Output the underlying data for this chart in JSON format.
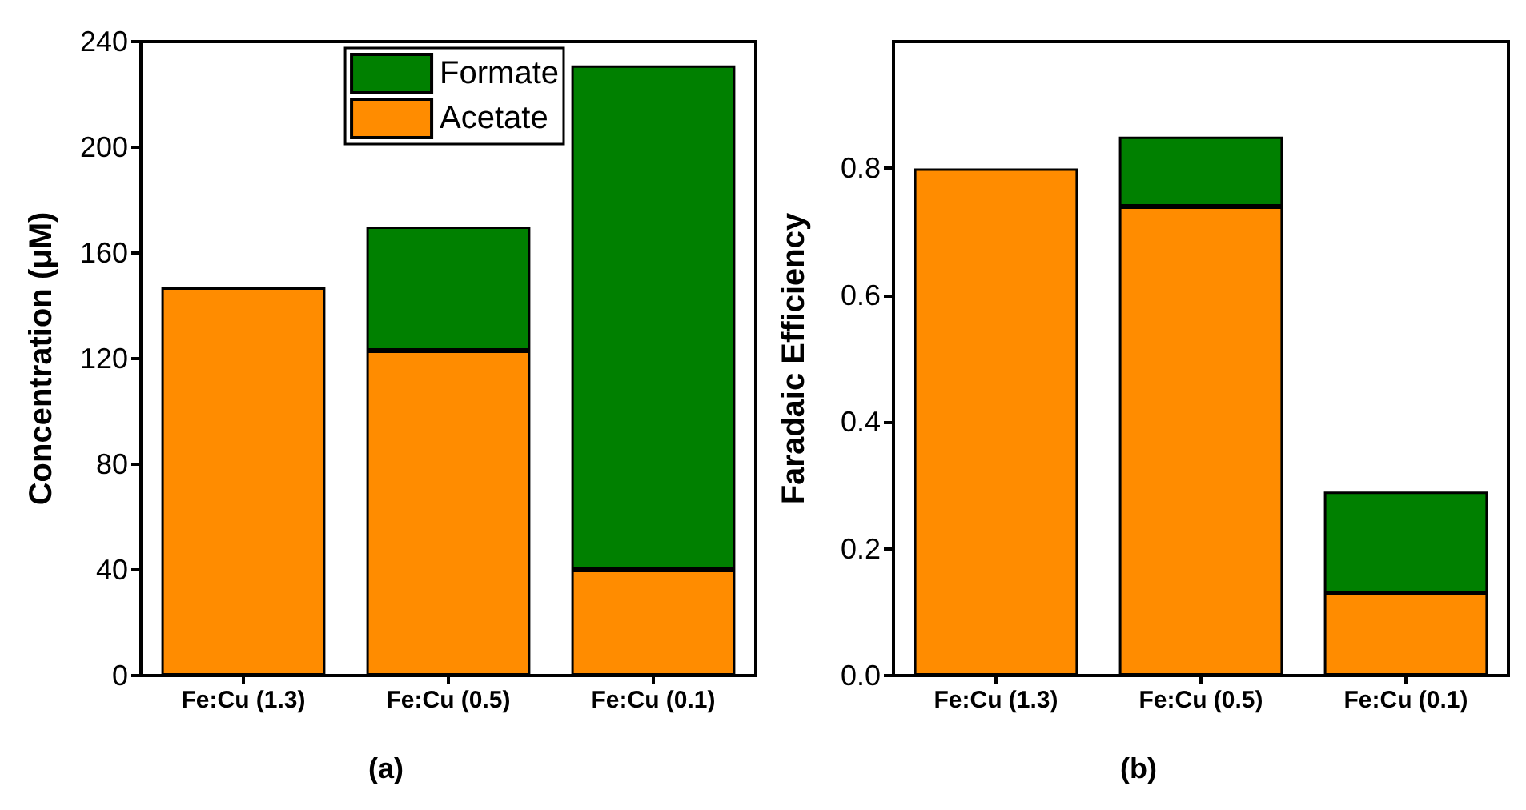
{
  "chart_data": [
    {
      "type": "bar",
      "stacked": true,
      "title": "(a)",
      "ylabel": "Concentration (μM)",
      "categories": [
        "Fe:Cu (1.3)",
        "Fe:Cu (0.5)",
        "Fe:Cu (0.1)"
      ],
      "series": [
        {
          "name": "Acetate",
          "color": "#ff8c00",
          "values": [
            147,
            123,
            40
          ]
        },
        {
          "name": "Formate",
          "color": "#008000",
          "values": [
            0,
            47,
            191
          ]
        }
      ],
      "ylim": [
        0,
        240
      ],
      "yticks": [
        0,
        40,
        80,
        120,
        160,
        200,
        240
      ],
      "grid": false,
      "legend": "top right"
    },
    {
      "type": "bar",
      "stacked": true,
      "title": "(b)",
      "ylabel": "Faradaic Efficiency",
      "categories": [
        "Fe:Cu (1.3)",
        "Fe:Cu (0.5)",
        "Fe:Cu (0.1)"
      ],
      "series": [
        {
          "color": "#ff8c00",
          "values": [
            0.8,
            0.74,
            0.13
          ]
        },
        {
          "color": "#008000",
          "values": [
            0,
            0.11,
            0.16
          ]
        }
      ],
      "ylim": [
        0,
        1.0
      ],
      "yticks": [
        {
          "value": 0,
          "label": "0.0"
        },
        {
          "value": 0.2,
          "label": "0.2"
        },
        {
          "value": 0.4,
          "label": "0.4"
        },
        {
          "value": 0.6,
          "label": "0.6"
        },
        {
          "value": 0.8,
          "label": "0.8"
        }
      ],
      "grid": false
    }
  ]
}
